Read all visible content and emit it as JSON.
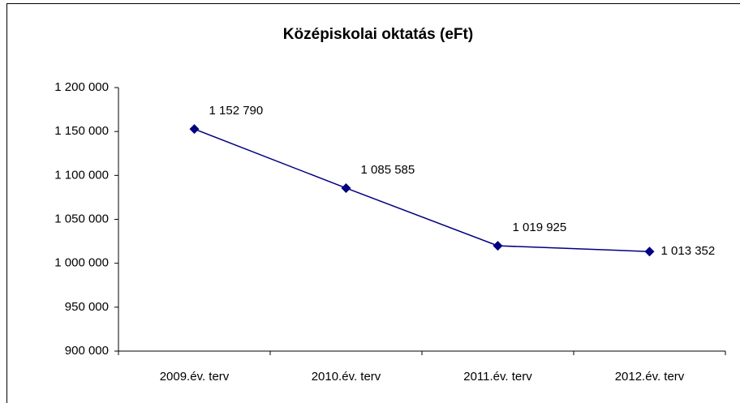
{
  "chart_data": {
    "type": "line",
    "title": "Középiskolai oktatás (eFt)",
    "categories": [
      "2009.év. terv",
      "2010.év. terv",
      "2011.év. terv",
      "2012.év. terv"
    ],
    "series": [
      {
        "name": "Középiskolai oktatás",
        "color": "#000080",
        "values": [
          1152790,
          1085585,
          1019925,
          1013352
        ],
        "value_labels": [
          "1 152 790",
          "1 085 585",
          "1 019 925",
          "1 013 352"
        ]
      }
    ],
    "ylim": [
      900000,
      1200000
    ],
    "yticks": [
      {
        "value": 900000,
        "label": "900 000"
      },
      {
        "value": 950000,
        "label": "950 000"
      },
      {
        "value": 1000000,
        "label": "1 000 000"
      },
      {
        "value": 1050000,
        "label": "1 050 000"
      },
      {
        "value": 1100000,
        "label": "1 100 000"
      },
      {
        "value": 1150000,
        "label": "1 150 000"
      },
      {
        "value": 1200000,
        "label": "1 200 000"
      }
    ],
    "grid": false
  }
}
